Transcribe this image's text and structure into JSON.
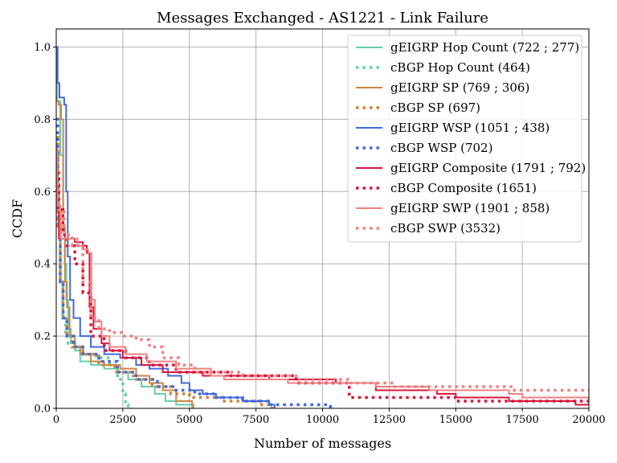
{
  "chart_data": {
    "type": "line",
    "title": "Messages Exchanged - AS1221 - Link Failure",
    "xlabel": "Number of messages",
    "ylabel": "CCDF",
    "xlim": [
      0,
      20000
    ],
    "ylim": [
      0,
      1.05
    ],
    "grid": true,
    "legend_position": "top-right",
    "xticks": [
      0,
      2500,
      5000,
      7500,
      10000,
      12500,
      15000,
      17500,
      20000
    ],
    "xtick_labels": [
      "0",
      "2500",
      "5000",
      "7500",
      "10000",
      "12500",
      "15000",
      "17500",
      "20000"
    ],
    "yticks": [
      0.0,
      0.2,
      0.4,
      0.6,
      0.8,
      1.0
    ],
    "ytick_labels": [
      "0.0",
      "0.2",
      "0.4",
      "0.6",
      "0.8",
      "1.0"
    ],
    "series": [
      {
        "name": "gEIGRP Hop Count (722 ; 277)",
        "color": "#66cdaa",
        "style": "solid",
        "points": [
          [
            0,
            1.0
          ],
          [
            40,
            0.85
          ],
          [
            150,
            0.7
          ],
          [
            260,
            0.5
          ],
          [
            320,
            0.4
          ],
          [
            380,
            0.3
          ],
          [
            450,
            0.22
          ],
          [
            550,
            0.18
          ],
          [
            700,
            0.16
          ],
          [
            900,
            0.13
          ],
          [
            1300,
            0.12
          ],
          [
            1800,
            0.11
          ],
          [
            2300,
            0.1
          ],
          [
            2700,
            0.08
          ],
          [
            3200,
            0.06
          ],
          [
            3700,
            0.04
          ],
          [
            4100,
            0.02
          ],
          [
            4500,
            0.01
          ],
          [
            5100,
            0.0
          ]
        ]
      },
      {
        "name": "cBGP Hop Count (464)",
        "color": "#66cdaa",
        "style": "dotted",
        "points": [
          [
            0,
            0.7
          ],
          [
            60,
            0.5
          ],
          [
            150,
            0.35
          ],
          [
            250,
            0.25
          ],
          [
            350,
            0.2
          ],
          [
            450,
            0.18
          ],
          [
            700,
            0.17
          ],
          [
            1000,
            0.15
          ],
          [
            1500,
            0.14
          ],
          [
            2000,
            0.12
          ],
          [
            2300,
            0.08
          ],
          [
            2500,
            0.04
          ],
          [
            2600,
            0.01
          ],
          [
            2700,
            0.0
          ]
        ]
      },
      {
        "name": "gEIGRP SP (769 ; 306)",
        "color": "#cd853f",
        "style": "solid",
        "points": [
          [
            0,
            0.85
          ],
          [
            80,
            0.84
          ],
          [
            180,
            0.8
          ],
          [
            260,
            0.5
          ],
          [
            330,
            0.35
          ],
          [
            400,
            0.28
          ],
          [
            500,
            0.2
          ],
          [
            700,
            0.17
          ],
          [
            900,
            0.15
          ],
          [
            1300,
            0.13
          ],
          [
            1800,
            0.12
          ],
          [
            2400,
            0.11
          ],
          [
            3000,
            0.09
          ],
          [
            3500,
            0.07
          ],
          [
            4000,
            0.05
          ],
          [
            4500,
            0.02
          ],
          [
            5100,
            0.01
          ],
          [
            5150,
            0.0
          ]
        ]
      },
      {
        "name": "cBGP SP (697)",
        "color": "#cd853f",
        "style": "dotted",
        "points": [
          [
            0,
            0.75
          ],
          [
            60,
            0.5
          ],
          [
            150,
            0.35
          ],
          [
            250,
            0.25
          ],
          [
            400,
            0.2
          ],
          [
            600,
            0.17
          ],
          [
            1000,
            0.15
          ],
          [
            1600,
            0.12
          ],
          [
            2200,
            0.1
          ],
          [
            2900,
            0.08
          ],
          [
            3600,
            0.06
          ],
          [
            4300,
            0.04
          ],
          [
            5000,
            0.03
          ],
          [
            6200,
            0.02
          ],
          [
            7600,
            0.01
          ],
          [
            8100,
            0.0
          ]
        ]
      },
      {
        "name": "gEIGRP WSP (1051 ; 438)",
        "color": "#4169e1",
        "style": "solid",
        "points": [
          [
            0,
            1.0
          ],
          [
            50,
            0.9
          ],
          [
            120,
            0.86
          ],
          [
            230,
            0.86
          ],
          [
            300,
            0.84
          ],
          [
            370,
            0.6
          ],
          [
            430,
            0.42
          ],
          [
            520,
            0.3
          ],
          [
            650,
            0.25
          ],
          [
            900,
            0.2
          ],
          [
            1300,
            0.17
          ],
          [
            1800,
            0.15
          ],
          [
            2400,
            0.14
          ],
          [
            3000,
            0.12
          ],
          [
            3500,
            0.11
          ],
          [
            4200,
            0.09
          ],
          [
            4700,
            0.07
          ],
          [
            5000,
            0.05
          ],
          [
            5500,
            0.04
          ],
          [
            6000,
            0.03
          ],
          [
            7000,
            0.02
          ],
          [
            8000,
            0.01
          ],
          [
            8200,
            0.0
          ]
        ]
      },
      {
        "name": "cBGP WSP (702)",
        "color": "#4169e1",
        "style": "dotted",
        "points": [
          [
            0,
            0.8
          ],
          [
            60,
            0.55
          ],
          [
            150,
            0.35
          ],
          [
            260,
            0.25
          ],
          [
            400,
            0.2
          ],
          [
            650,
            0.17
          ],
          [
            1000,
            0.15
          ],
          [
            1600,
            0.13
          ],
          [
            2300,
            0.1
          ],
          [
            3000,
            0.08
          ],
          [
            3800,
            0.06
          ],
          [
            4500,
            0.05
          ],
          [
            5200,
            0.04
          ],
          [
            6000,
            0.03
          ],
          [
            7000,
            0.02
          ],
          [
            8000,
            0.01
          ],
          [
            10200,
            0.01
          ],
          [
            10300,
            0.0
          ]
        ]
      },
      {
        "name": "gEIGRP Composite (1791 ; 792)",
        "color": "#dc143c",
        "style": "solid",
        "points": [
          [
            0,
            0.72
          ],
          [
            40,
            0.56
          ],
          [
            100,
            0.47
          ],
          [
            500,
            0.47
          ],
          [
            700,
            0.46
          ],
          [
            1000,
            0.45
          ],
          [
            1150,
            0.43
          ],
          [
            1250,
            0.28
          ],
          [
            1400,
            0.22
          ],
          [
            1700,
            0.18
          ],
          [
            2000,
            0.16
          ],
          [
            2500,
            0.14
          ],
          [
            3200,
            0.12
          ],
          [
            4000,
            0.1
          ],
          [
            5500,
            0.09
          ],
          [
            8000,
            0.08
          ],
          [
            10500,
            0.07
          ],
          [
            12000,
            0.05
          ],
          [
            14300,
            0.04
          ],
          [
            15000,
            0.03
          ],
          [
            17000,
            0.02
          ],
          [
            19500,
            0.01
          ],
          [
            20000,
            0.01
          ]
        ]
      },
      {
        "name": "cBGP Composite (1651)",
        "color": "#dc143c",
        "style": "dotted",
        "points": [
          [
            0,
            0.65
          ],
          [
            100,
            0.55
          ],
          [
            250,
            0.48
          ],
          [
            400,
            0.45
          ],
          [
            700,
            0.4
          ],
          [
            1000,
            0.32
          ],
          [
            1300,
            0.2
          ],
          [
            1800,
            0.16
          ],
          [
            2600,
            0.14
          ],
          [
            3500,
            0.12
          ],
          [
            4500,
            0.1
          ],
          [
            6500,
            0.09
          ],
          [
            9000,
            0.07
          ],
          [
            11000,
            0.03
          ],
          [
            14200,
            0.03
          ],
          [
            15000,
            0.02
          ],
          [
            17000,
            0.02
          ],
          [
            20000,
            0.02
          ]
        ]
      },
      {
        "name": "gEIGRP SWP (1901 ; 858)",
        "color": "#f08080",
        "style": "solid",
        "points": [
          [
            0,
            0.72
          ],
          [
            40,
            0.56
          ],
          [
            150,
            0.47
          ],
          [
            600,
            0.47
          ],
          [
            800,
            0.45
          ],
          [
            1000,
            0.44
          ],
          [
            1200,
            0.43
          ],
          [
            1320,
            0.3
          ],
          [
            1450,
            0.24
          ],
          [
            1700,
            0.2
          ],
          [
            2000,
            0.17
          ],
          [
            2600,
            0.15
          ],
          [
            3400,
            0.13
          ],
          [
            4500,
            0.11
          ],
          [
            5800,
            0.09
          ],
          [
            6300,
            0.08
          ],
          [
            8700,
            0.07
          ],
          [
            12000,
            0.06
          ],
          [
            14000,
            0.05
          ],
          [
            17000,
            0.04
          ],
          [
            17500,
            0.03
          ],
          [
            20000,
            0.02
          ]
        ]
      },
      {
        "name": "cBGP SWP (3532)",
        "color": "#f08080",
        "style": "dotted",
        "points": [
          [
            0,
            0.62
          ],
          [
            100,
            0.55
          ],
          [
            300,
            0.48
          ],
          [
            600,
            0.45
          ],
          [
            1000,
            0.35
          ],
          [
            1300,
            0.25
          ],
          [
            1600,
            0.22
          ],
          [
            2000,
            0.21
          ],
          [
            2500,
            0.2
          ],
          [
            3000,
            0.19
          ],
          [
            3500,
            0.17
          ],
          [
            4000,
            0.14
          ],
          [
            4600,
            0.12
          ],
          [
            5200,
            0.1
          ],
          [
            6000,
            0.1
          ],
          [
            7000,
            0.09
          ],
          [
            9000,
            0.08
          ],
          [
            11000,
            0.07
          ],
          [
            12700,
            0.06
          ],
          [
            17200,
            0.05
          ],
          [
            20000,
            0.05
          ]
        ]
      }
    ]
  }
}
